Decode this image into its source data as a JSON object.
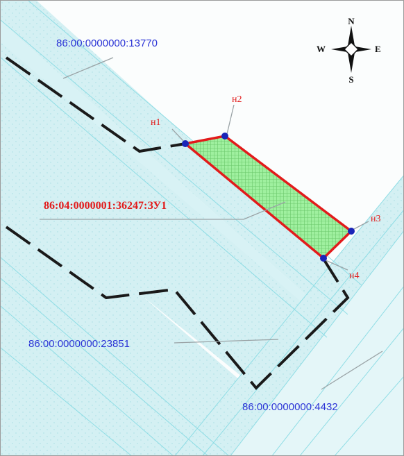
{
  "parcels": {
    "north": "86:00:0000000:13770",
    "subject": "86:04:0000001:36247:ЗУ1",
    "middle": "86:00:0000000:23851",
    "south": "86:00:0000000:4432"
  },
  "points": {
    "n1": "н1",
    "n2": "н2",
    "n3": "н3",
    "n4": "н4"
  },
  "compass": {
    "north": "N",
    "south": "S",
    "west": "W",
    "east": "E"
  },
  "colors": {
    "parcel_label": "#2b34d6",
    "subject_label": "#e21b1b",
    "subject_outline": "#e21b1b",
    "subject_fill": "#9df29d",
    "vertex": "#1a25b8",
    "boundary_dashed": "#1a1a1a",
    "strip_fill": "#cdeef2",
    "strip_lines": "#8fdde5"
  }
}
